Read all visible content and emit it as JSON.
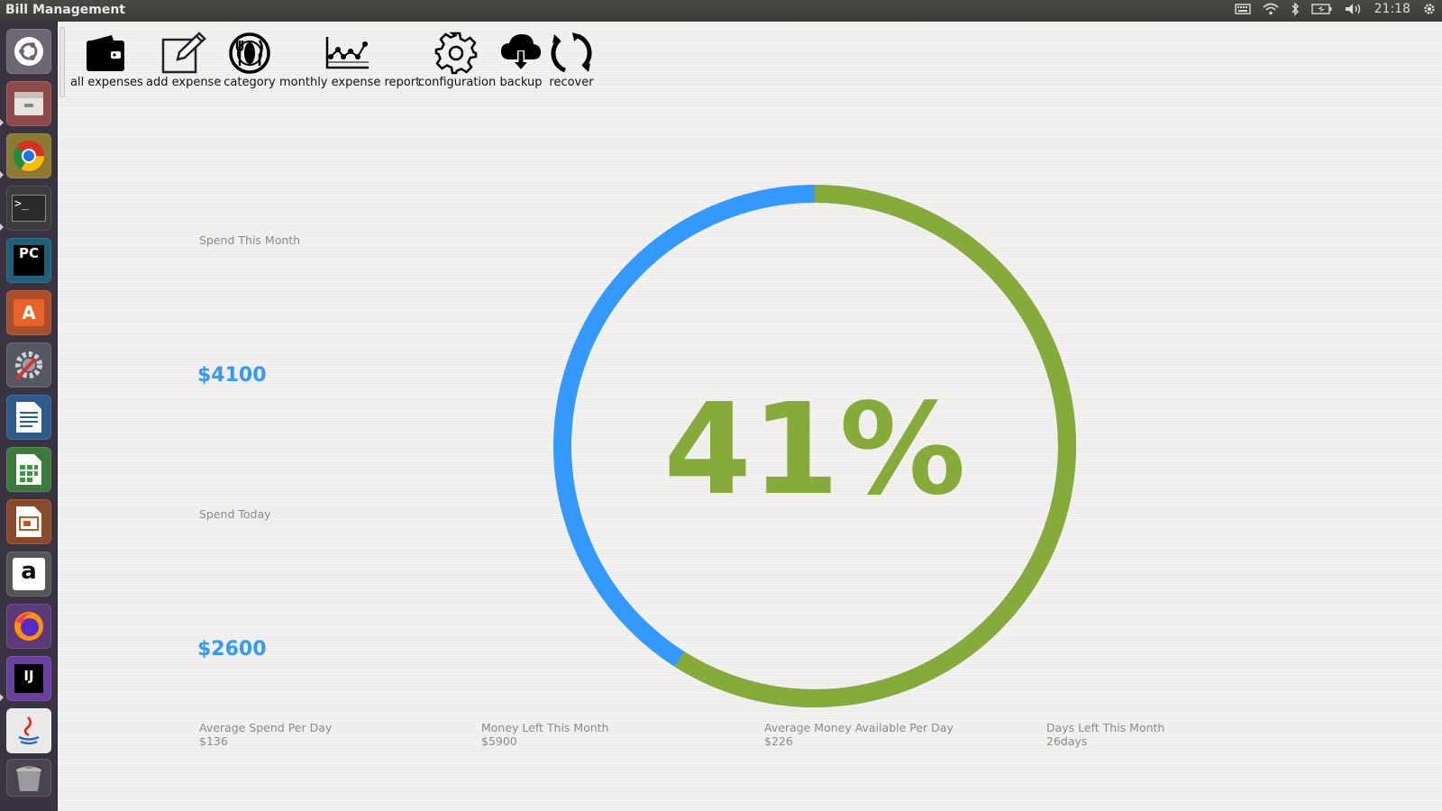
{
  "window": {
    "title": "Bill Management",
    "clock": "21:18"
  },
  "toolbar": {
    "all_expenses": "all expenses",
    "add_expense": "add expense",
    "category": "category",
    "monthly_report": "monthly expense report",
    "configuration": "configuration",
    "backup": "backup",
    "recover": "recover"
  },
  "summary": {
    "spend_month_label": "Spend This Month",
    "spend_month_value": "$4100",
    "spend_today_label": "Spend Today",
    "spend_today_value": "$2600"
  },
  "gauge": {
    "percent_text": "41%",
    "fraction": 0.41,
    "used_color": "#3399ff",
    "remaining_color": "#86ab3a"
  },
  "stats": [
    {
      "label": "Average Spend Per Day",
      "value": "$136"
    },
    {
      "label": "Money Left This Month",
      "value": "$5900"
    },
    {
      "label": "Average Money Available Per Day",
      "value": "$226"
    },
    {
      "label": "Days Left This Month",
      "value": "26days"
    }
  ],
  "launcher": {
    "items": [
      {
        "name": "dash-icon"
      },
      {
        "name": "files-icon"
      },
      {
        "name": "chrome-icon"
      },
      {
        "name": "terminal-icon",
        "glyph": ">_"
      },
      {
        "name": "pycharm-icon",
        "glyph": "PC"
      },
      {
        "name": "software-center-icon",
        "glyph": "A"
      },
      {
        "name": "system-settings-icon"
      },
      {
        "name": "writer-icon"
      },
      {
        "name": "calc-icon"
      },
      {
        "name": "impress-icon"
      },
      {
        "name": "amazon-icon",
        "glyph": "a"
      },
      {
        "name": "firefox-icon"
      },
      {
        "name": "intellij-icon",
        "glyph": "IJ"
      },
      {
        "name": "java-icon"
      },
      {
        "name": "trash-icon"
      }
    ]
  }
}
